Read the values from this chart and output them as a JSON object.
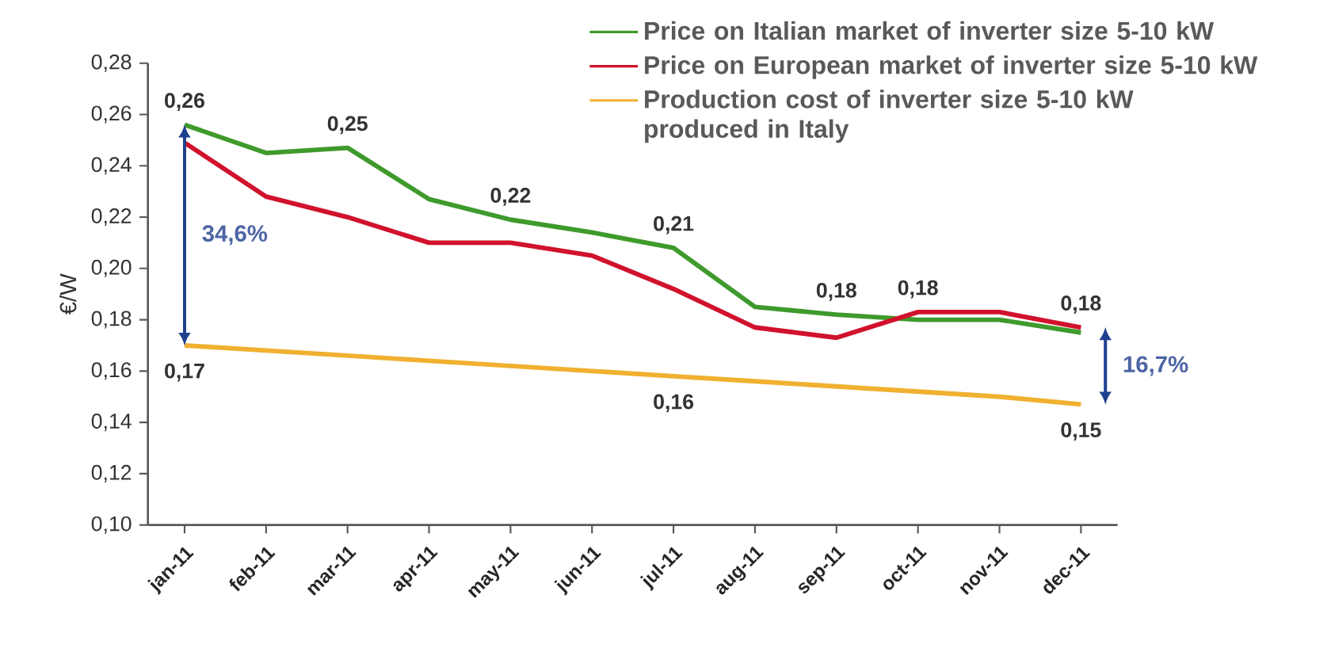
{
  "chart_data": {
    "type": "line",
    "ylabel": "€/W",
    "categories": [
      "jan-11",
      "feb-11",
      "mar-11",
      "apr-11",
      "may-11",
      "jun-11",
      "jul-11",
      "aug-11",
      "sep-11",
      "oct-11",
      "nov-11",
      "dec-11"
    ],
    "series": [
      {
        "name": "Price on Italian market of inverter size 5-10 kW",
        "color": "#3f9a2c",
        "values": [
          0.256,
          0.245,
          0.247,
          0.227,
          0.219,
          0.214,
          0.208,
          0.185,
          0.182,
          0.18,
          0.18,
          0.175
        ],
        "value_labels": [
          "0,26",
          null,
          "0,25",
          null,
          "0,22",
          null,
          "0,21",
          null,
          "0,18",
          null,
          null,
          null
        ]
      },
      {
        "name": "Price on European market of inverter size 5-10 kW",
        "color": "#d1122c",
        "values": [
          0.249,
          0.228,
          0.22,
          0.21,
          0.21,
          0.205,
          0.192,
          0.177,
          0.173,
          0.183,
          0.183,
          0.177
        ],
        "value_labels": [
          null,
          null,
          null,
          null,
          null,
          null,
          null,
          null,
          null,
          "0,18",
          null,
          "0,18"
        ]
      },
      {
        "name": "Production cost of inverter size 5-10 kW produced in Italy",
        "color": "#f0b030",
        "values": [
          0.17,
          0.168,
          0.166,
          0.164,
          0.162,
          0.16,
          0.158,
          0.156,
          0.154,
          0.152,
          0.15,
          0.147
        ],
        "value_labels": [
          "0,17",
          null,
          null,
          null,
          null,
          null,
          "0,16",
          null,
          null,
          null,
          null,
          "0,15"
        ]
      }
    ],
    "annotations": [
      "34,6%",
      "16,7%"
    ],
    "ylim": [
      0.1,
      0.28
    ],
    "yticks": [
      {
        "value": 0.1,
        "label": "0,10"
      },
      {
        "value": 0.12,
        "label": "0,12"
      },
      {
        "value": 0.14,
        "label": "0,14"
      },
      {
        "value": 0.16,
        "label": "0,16"
      },
      {
        "value": 0.18,
        "label": "0,18"
      },
      {
        "value": 0.2,
        "label": "0,20"
      },
      {
        "value": 0.22,
        "label": "0,22"
      },
      {
        "value": 0.24,
        "label": "0,24"
      },
      {
        "value": 0.26,
        "label": "0,26"
      },
      {
        "value": 0.28,
        "label": "0,28"
      }
    ],
    "grid": false,
    "legend": "top right",
    "marker": "none",
    "line_style": "solid"
  }
}
